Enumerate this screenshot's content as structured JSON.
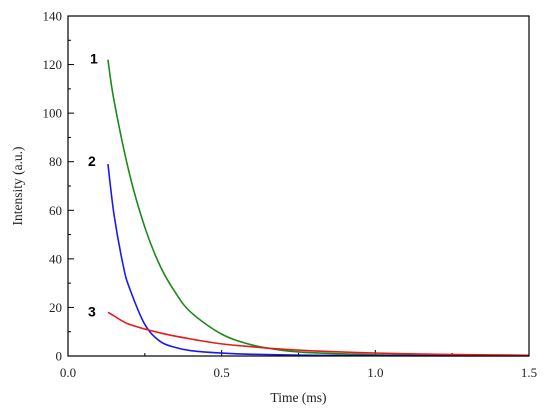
{
  "chart_data": {
    "type": "line",
    "xlabel": "Time (ms)",
    "ylabel": "Intensity (a.u.)",
    "xlim": [
      0.0,
      1.5
    ],
    "ylim": [
      0,
      140
    ],
    "x_ticks": [
      "0.0",
      "0.5",
      "1.0",
      "1.5"
    ],
    "y_ticks": [
      "0",
      "20",
      "40",
      "60",
      "80",
      "100",
      "120",
      "140"
    ],
    "grid": false,
    "legend": "none (curves labeled directly)",
    "series": [
      {
        "label": "1",
        "color": "#1a8a1a",
        "x": [
          0.13,
          0.15,
          0.2,
          0.25,
          0.3,
          0.35,
          0.4,
          0.5,
          0.6,
          0.7,
          0.8,
          1.0,
          1.2,
          1.5
        ],
        "y": [
          122,
          105,
          75,
          53,
          37,
          26,
          18,
          9,
          4.5,
          2.3,
          1.3,
          0.5,
          0.2,
          0.1
        ]
      },
      {
        "label": "2",
        "color": "#1a1aee",
        "x": [
          0.13,
          0.15,
          0.18,
          0.2,
          0.25,
          0.3,
          0.35,
          0.4,
          0.5,
          0.6,
          0.8,
          1.0,
          1.5
        ],
        "y": [
          79,
          58,
          37,
          28,
          13,
          6,
          3.5,
          2.2,
          1.2,
          0.7,
          0.3,
          0.15,
          0.05
        ]
      },
      {
        "label": "3",
        "color": "#e81a1a",
        "x": [
          0.13,
          0.15,
          0.2,
          0.3,
          0.4,
          0.5,
          0.6,
          0.7,
          0.8,
          1.0,
          1.2,
          1.5
        ],
        "y": [
          18,
          16.5,
          13,
          9.5,
          7,
          5,
          3.8,
          2.8,
          2.1,
          1.2,
          0.7,
          0.3
        ]
      }
    ]
  }
}
